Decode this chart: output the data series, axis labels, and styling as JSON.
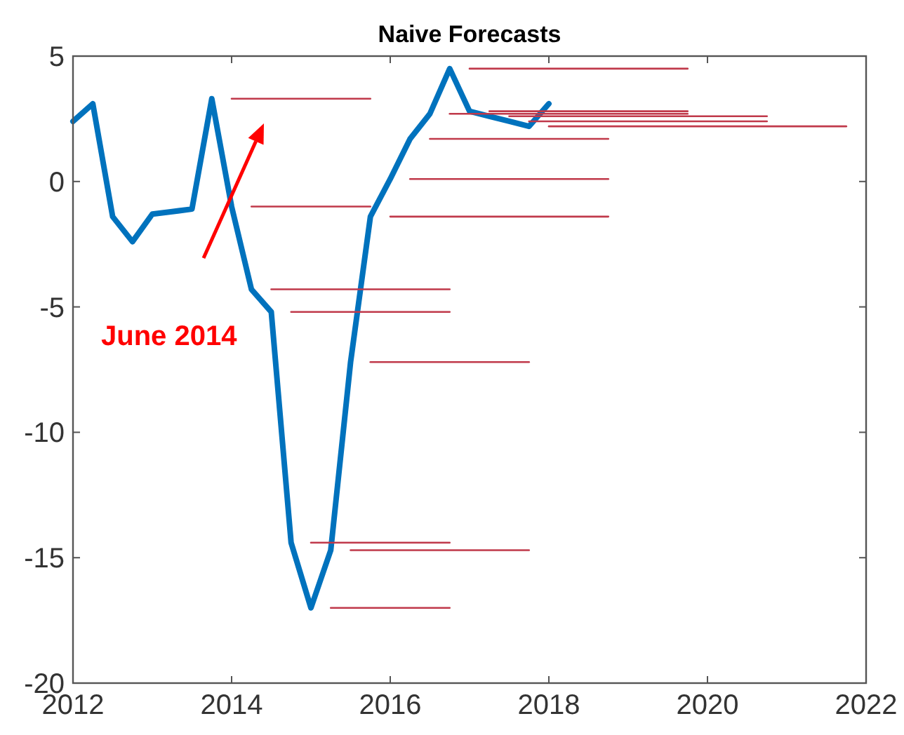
{
  "chart_data": {
    "type": "line",
    "title": "Naive Forecasts",
    "xlim": [
      2012,
      2022
    ],
    "xticks": [
      2012,
      2014,
      2016,
      2018,
      2020,
      2022
    ],
    "ylim": [
      -20,
      5
    ],
    "yticks": [
      -20,
      -15,
      -10,
      -5,
      0,
      5
    ],
    "grid": false,
    "line_style": "solid",
    "marker": "none",
    "series": [
      {
        "color": "#0072bd",
        "x": [
          2012,
          2012.25,
          2012.5,
          2012.75,
          2013,
          2013.25,
          2013.5,
          2013.75,
          2014,
          2014.25,
          2014.5,
          2014.75,
          2015,
          2015.25,
          2015.5,
          2015.75,
          2016,
          2016.25,
          2016.5,
          2016.75,
          2017,
          2017.25,
          2017.5,
          2017.75,
          2018
        ],
        "values": [
          2.4,
          3.1,
          -1.4,
          -2.4,
          -1.3,
          -1.2,
          -1.1,
          3.3,
          -1.0,
          -4.3,
          -5.2,
          -14.4,
          -17.0,
          -14.7,
          -7.2,
          -1.4,
          0.1,
          1.7,
          2.7,
          4.5,
          2.8,
          2.6,
          2.4,
          2.2,
          3.1
        ]
      },
      {
        "color": "#c0394a",
        "x": [
          2014,
          2015.75
        ],
        "values": [
          3.3,
          3.3
        ]
      },
      {
        "color": "#c0394a",
        "x": [
          2014.25,
          2015.75
        ],
        "values": [
          -1.0,
          -1.0
        ]
      },
      {
        "color": "#c0394a",
        "x": [
          2014.5,
          2016.75
        ],
        "values": [
          -4.3,
          -4.3
        ]
      },
      {
        "color": "#c0394a",
        "x": [
          2014.75,
          2016.75
        ],
        "values": [
          -5.2,
          -5.2
        ]
      },
      {
        "color": "#c0394a",
        "x": [
          2015,
          2016.75
        ],
        "values": [
          -14.4,
          -14.4
        ]
      },
      {
        "color": "#c0394a",
        "x": [
          2015.25,
          2016.75
        ],
        "values": [
          -17.0,
          -17.0
        ]
      },
      {
        "color": "#c0394a",
        "x": [
          2015.5,
          2017.75
        ],
        "values": [
          -14.7,
          -14.7
        ]
      },
      {
        "color": "#c0394a",
        "x": [
          2015.75,
          2017.75
        ],
        "values": [
          -7.2,
          -7.2
        ]
      },
      {
        "color": "#c0394a",
        "x": [
          2016,
          2018.75
        ],
        "values": [
          -1.4,
          -1.4
        ]
      },
      {
        "color": "#c0394a",
        "x": [
          2016.25,
          2018.75
        ],
        "values": [
          0.1,
          0.1
        ]
      },
      {
        "color": "#c0394a",
        "x": [
          2016.5,
          2018.75
        ],
        "values": [
          1.7,
          1.7
        ]
      },
      {
        "color": "#c0394a",
        "x": [
          2016.75,
          2019.75
        ],
        "values": [
          2.7,
          2.7
        ]
      },
      {
        "color": "#c0394a",
        "x": [
          2017,
          2019.75
        ],
        "values": [
          4.5,
          4.5
        ]
      },
      {
        "color": "#c0394a",
        "x": [
          2017.25,
          2019.75
        ],
        "values": [
          2.8,
          2.8
        ]
      },
      {
        "color": "#c0394a",
        "x": [
          2017.5,
          2020.75
        ],
        "values": [
          2.6,
          2.6
        ]
      },
      {
        "color": "#c0394a",
        "x": [
          2017.75,
          2020.75
        ],
        "values": [
          2.4,
          2.4
        ]
      },
      {
        "color": "#c0394a",
        "x": [
          2018,
          2021.75
        ],
        "values": [
          2.2,
          2.2
        ]
      }
    ],
    "annotations": [
      "June 2014"
    ]
  }
}
